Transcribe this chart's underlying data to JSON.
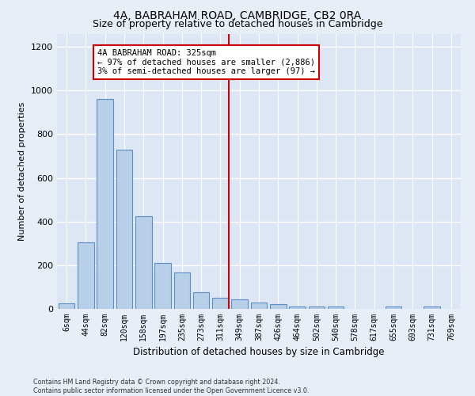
{
  "title": "4A, BABRAHAM ROAD, CAMBRIDGE, CB2 0RA",
  "subtitle": "Size of property relative to detached houses in Cambridge",
  "xlabel": "Distribution of detached houses by size in Cambridge",
  "ylabel": "Number of detached properties",
  "categories": [
    "6sqm",
    "44sqm",
    "82sqm",
    "120sqm",
    "158sqm",
    "197sqm",
    "235sqm",
    "273sqm",
    "311sqm",
    "349sqm",
    "387sqm",
    "426sqm",
    "464sqm",
    "502sqm",
    "540sqm",
    "578sqm",
    "617sqm",
    "655sqm",
    "693sqm",
    "731sqm",
    "769sqm"
  ],
  "values": [
    25,
    305,
    960,
    730,
    425,
    210,
    165,
    75,
    50,
    45,
    30,
    20,
    12,
    12,
    12,
    0,
    0,
    12,
    0,
    12,
    0
  ],
  "bar_color": "#b8cfe8",
  "bar_edge_color": "#5b8ec4",
  "fig_background": "#e8eef8",
  "ax_background": "#dde6f5",
  "grid_color": "#ffffff",
  "vline_x": 8.45,
  "vline_color": "#cc0000",
  "annotation_text": "4A BABRAHAM ROAD: 325sqm\n← 97% of detached houses are smaller (2,886)\n3% of semi-detached houses are larger (97) →",
  "annotation_box_facecolor": "#ffffff",
  "annotation_box_edgecolor": "#cc0000",
  "ylim": [
    0,
    1260
  ],
  "yticks": [
    0,
    200,
    400,
    600,
    800,
    1000,
    1200
  ],
  "footer_line1": "Contains HM Land Registry data © Crown copyright and database right 2024.",
  "footer_line2": "Contains public sector information licensed under the Open Government Licence v3.0."
}
